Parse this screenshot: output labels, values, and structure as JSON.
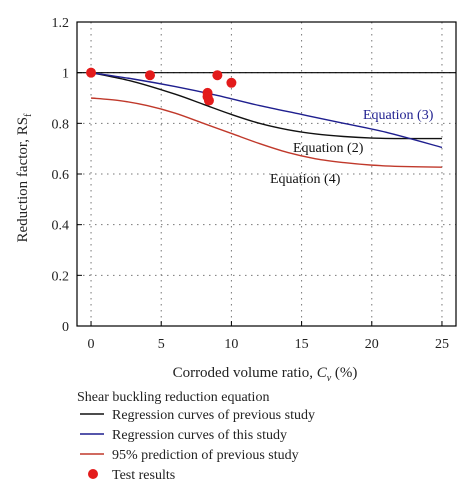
{
  "chart_data": {
    "type": "line",
    "xlabel_main": "Corroded volume ratio, ",
    "xlabel_var": "C",
    "xlabel_sub": "v",
    "xlabel_unit": " (%)",
    "ylabel_main": "Reduction factor, RS",
    "ylabel_sub": "f",
    "xlim": [
      -1,
      26
    ],
    "ylim": [
      0,
      1.2
    ],
    "xticks": [
      0,
      5,
      10,
      15,
      20,
      25
    ],
    "yticks": [
      0,
      0.2,
      0.4,
      0.6,
      0.8,
      1,
      1.2
    ],
    "xtick_labels": [
      "0",
      "5",
      "10",
      "15",
      "20",
      "25"
    ],
    "ytick_labels": [
      "0",
      "0.2",
      "0.4",
      "0.6",
      "0.8",
      "1",
      "1.2"
    ],
    "grid": true,
    "reference_line_y": 1.0,
    "series": [
      {
        "label": "Equation (2)",
        "color": "#111111",
        "x": [
          0,
          3,
          6,
          8,
          10,
          12,
          14,
          16,
          18,
          20,
          22,
          25
        ],
        "y": [
          1.0,
          0.965,
          0.915,
          0.875,
          0.835,
          0.8,
          0.775,
          0.758,
          0.748,
          0.742,
          0.74,
          0.74
        ]
      },
      {
        "label": "Equation (3)",
        "color": "#1f1f8f",
        "x": [
          0,
          3,
          6,
          9,
          12,
          15,
          18,
          21,
          25
        ],
        "y": [
          1.0,
          0.975,
          0.945,
          0.91,
          0.87,
          0.835,
          0.8,
          0.765,
          0.705
        ]
      },
      {
        "label": "Equation (4)",
        "color": "#c0392b",
        "x": [
          0,
          2,
          4,
          6,
          8,
          10,
          12,
          14,
          16,
          18,
          20,
          22,
          25
        ],
        "y": [
          0.9,
          0.89,
          0.87,
          0.84,
          0.8,
          0.76,
          0.72,
          0.685,
          0.66,
          0.645,
          0.635,
          0.63,
          0.627
        ]
      }
    ],
    "points": {
      "color": "#e31b1b",
      "x": [
        0,
        4.2,
        8.3,
        8.3,
        8.4,
        9,
        10
      ],
      "y": [
        1.0,
        0.99,
        0.92,
        0.905,
        0.89,
        0.99,
        0.96
      ]
    },
    "legend": {
      "title": "Shear buckling reduction equation",
      "entries": [
        {
          "label": "Regression curves of previous study",
          "color": "#111111",
          "marker": "line"
        },
        {
          "label": "Regression curves of this study",
          "color": "#1f1f8f",
          "marker": "line"
        },
        {
          "label": "95% prediction of previous study",
          "color": "#c0392b",
          "marker": "line"
        },
        {
          "label": "Test results",
          "color": "#e31b1b",
          "marker": "dot"
        }
      ]
    }
  }
}
